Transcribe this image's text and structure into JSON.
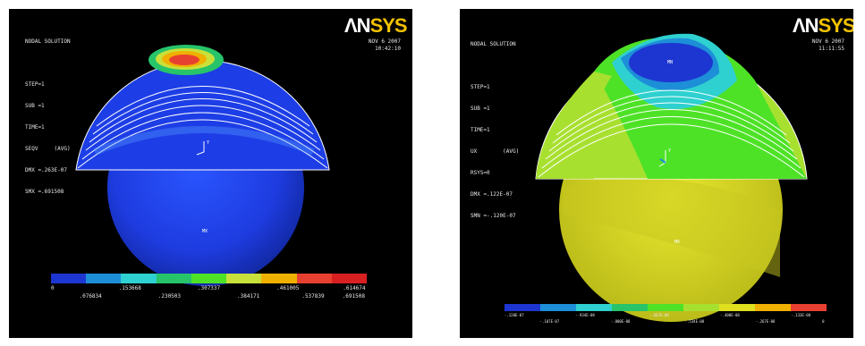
{
  "left": {
    "logo": {
      "text_a": "ΛN",
      "text_b": "SYS"
    },
    "info_lines": [
      "NODAL SOLUTION",
      "",
      "STEP=1",
      "SUB =1",
      "TIME=1",
      "SEQV     (AVG)",
      "DMX =.263E-07",
      "SMX =.691508"
    ],
    "date": "NOV  6 2007",
    "time": "10:42:10",
    "min_label": "MN",
    "max_label": "MX",
    "legend_colors": [
      "#1d36d2",
      "#1d8ed8",
      "#2fd0d0",
      "#27c46a",
      "#4ee227",
      "#c8e03a",
      "#f0b000",
      "#e84030",
      "#d82020"
    ],
    "tick_top": [
      "0",
      ".153668",
      ".307337",
      ".461005",
      ".614674"
    ],
    "tick_bottom": [
      ".076834",
      ".230503",
      ".384171",
      ".537839",
      ".691508"
    ]
  },
  "right": {
    "logo": {
      "text_a": "ΛN",
      "text_b": "SYS"
    },
    "info_lines": [
      "NODAL SOLUTION",
      "",
      "STEP=1",
      "SUB =1",
      "TIME=1",
      "UX        (AVG)",
      "RSYS=0",
      "DMX =.122E-07",
      "SMN =-.120E-07"
    ],
    "date": "NOV  6 2007",
    "time": "11:11:55",
    "min_label": "MN",
    "max_label": "MX",
    "legend_colors": [
      "#1d36d2",
      "#1d8ed8",
      "#2fd0d0",
      "#27c46a",
      "#4ee227",
      "#a8e030",
      "#e0e020",
      "#f0b000",
      "#e84030"
    ],
    "tick_top": [
      "-.120E-07",
      "-.934E-08",
      "-.667E-08",
      "-.400E-08",
      "-.133E-08"
    ],
    "tick_bottom": [
      "-.107E-07",
      "-.800E-08",
      "-.534E-08",
      "-.267E-08",
      "0"
    ]
  }
}
